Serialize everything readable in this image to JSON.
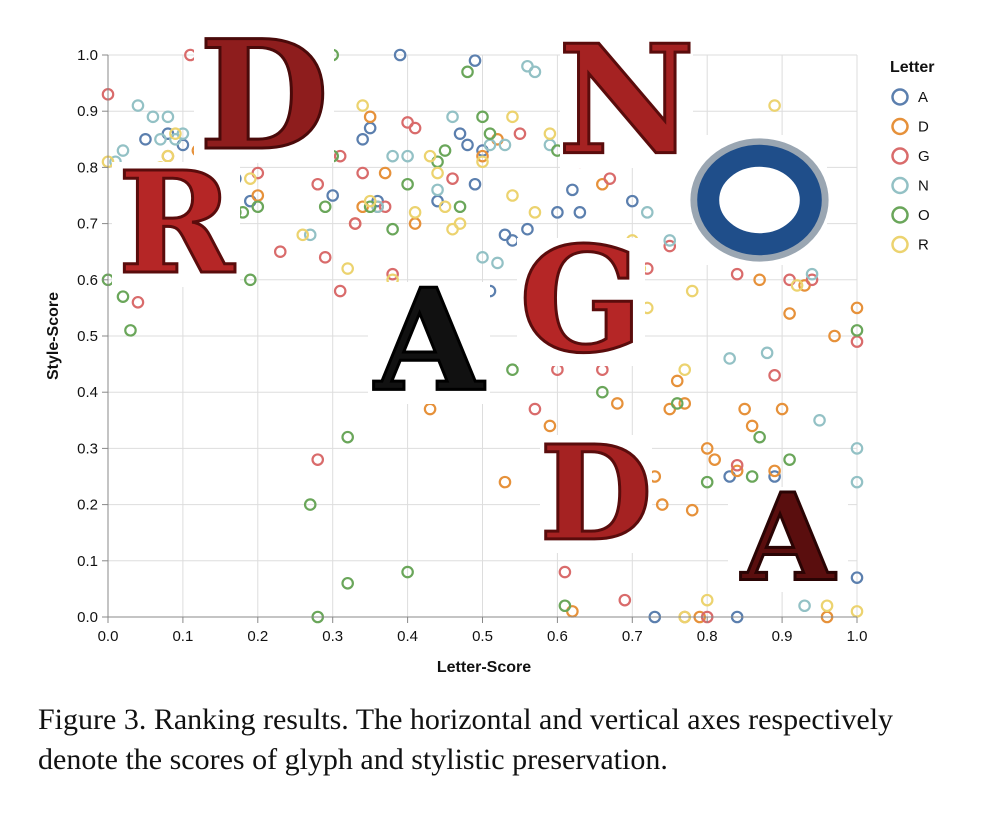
{
  "chart_data": {
    "type": "scatter",
    "xlabel": "Letter-Score",
    "ylabel": "Style-Score",
    "xlim": [
      0.0,
      1.0
    ],
    "ylim": [
      0.0,
      1.0
    ],
    "xticks": [
      "0.0",
      "0.1",
      "0.2",
      "0.3",
      "0.4",
      "0.5",
      "0.6",
      "0.7",
      "0.8",
      "0.9",
      "1.0"
    ],
    "yticks": [
      "0.0",
      "0.1",
      "0.2",
      "0.3",
      "0.4",
      "0.5",
      "0.6",
      "0.7",
      "0.8",
      "0.9",
      "1.0"
    ],
    "grid": true,
    "legend": {
      "title": "Letter",
      "position": "right"
    },
    "series": [
      {
        "name": "A",
        "color": "#5b7fae",
        "points": [
          [
            0.13,
            0.76
          ],
          [
            0.17,
            0.78
          ],
          [
            0.19,
            0.74
          ],
          [
            0.3,
            0.75
          ],
          [
            0.34,
            0.85
          ],
          [
            0.35,
            0.87
          ],
          [
            0.36,
            0.74
          ],
          [
            0.44,
            0.74
          ],
          [
            0.47,
            0.86
          ],
          [
            0.48,
            0.84
          ],
          [
            0.49,
            0.77
          ],
          [
            0.49,
            0.99
          ],
          [
            0.5,
            0.83
          ],
          [
            0.51,
            0.58
          ],
          [
            0.53,
            0.68
          ],
          [
            0.54,
            0.67
          ],
          [
            0.56,
            0.69
          ],
          [
            0.6,
            0.72
          ],
          [
            0.62,
            0.76
          ],
          [
            0.63,
            0.72
          ],
          [
            0.64,
            0.66
          ],
          [
            0.7,
            0.74
          ],
          [
            0.71,
            0.3
          ],
          [
            0.73,
            0.0
          ],
          [
            0.83,
            0.25
          ],
          [
            0.84,
            0.0
          ],
          [
            0.89,
            0.25
          ],
          [
            1.0,
            0.07
          ],
          [
            0.39,
            1.0
          ],
          [
            0.13,
            0.81
          ],
          [
            0.08,
            0.86
          ],
          [
            0.05,
            0.85
          ],
          [
            0.1,
            0.84
          ]
        ]
      },
      {
        "name": "D",
        "color": "#e6913a",
        "points": [
          [
            0.12,
            0.83
          ],
          [
            0.2,
            0.75
          ],
          [
            0.33,
            0.7
          ],
          [
            0.34,
            0.73
          ],
          [
            0.35,
            0.89
          ],
          [
            0.37,
            0.79
          ],
          [
            0.41,
            0.7
          ],
          [
            0.43,
            0.37
          ],
          [
            0.5,
            0.82
          ],
          [
            0.52,
            0.85
          ],
          [
            0.53,
            0.24
          ],
          [
            0.57,
            0.65
          ],
          [
            0.59,
            0.34
          ],
          [
            0.62,
            0.01
          ],
          [
            0.66,
            0.77
          ],
          [
            0.68,
            0.38
          ],
          [
            0.69,
            0.48
          ],
          [
            0.7,
            0.22
          ],
          [
            0.71,
            0.16
          ],
          [
            0.73,
            0.25
          ],
          [
            0.74,
            0.2
          ],
          [
            0.75,
            0.37
          ],
          [
            0.76,
            0.42
          ],
          [
            0.77,
            0.38
          ],
          [
            0.78,
            0.19
          ],
          [
            0.8,
            0.3
          ],
          [
            0.81,
            0.28
          ],
          [
            0.84,
            0.26
          ],
          [
            0.85,
            0.37
          ],
          [
            0.86,
            0.34
          ],
          [
            0.87,
            0.6
          ],
          [
            0.89,
            0.26
          ],
          [
            0.9,
            0.37
          ],
          [
            0.91,
            0.54
          ],
          [
            0.97,
            0.5
          ],
          [
            1.0,
            0.55
          ],
          [
            0.93,
            0.59
          ],
          [
            0.77,
            0.0
          ],
          [
            0.79,
            0.0
          ],
          [
            0.96,
            0.0
          ],
          [
            0.08,
            0.82
          ]
        ]
      },
      {
        "name": "G",
        "color": "#d96b6b",
        "points": [
          [
            0.0,
            0.93
          ],
          [
            0.04,
            0.56
          ],
          [
            0.11,
            1.0
          ],
          [
            0.2,
            0.79
          ],
          [
            0.23,
            0.65
          ],
          [
            0.28,
            0.77
          ],
          [
            0.29,
            0.64
          ],
          [
            0.31,
            0.58
          ],
          [
            0.33,
            0.7
          ],
          [
            0.34,
            0.79
          ],
          [
            0.36,
            0.73
          ],
          [
            0.37,
            0.73
          ],
          [
            0.38,
            0.61
          ],
          [
            0.41,
            0.87
          ],
          [
            0.46,
            0.78
          ],
          [
            0.55,
            0.86
          ],
          [
            0.57,
            0.37
          ],
          [
            0.6,
            0.44
          ],
          [
            0.61,
            0.08
          ],
          [
            0.63,
            0.81
          ],
          [
            0.66,
            0.44
          ],
          [
            0.67,
            0.78
          ],
          [
            0.69,
            0.03
          ],
          [
            0.72,
            0.62
          ],
          [
            0.75,
            0.66
          ],
          [
            0.8,
            0.0
          ],
          [
            0.84,
            0.61
          ],
          [
            0.84,
            0.27
          ],
          [
            0.89,
            0.43
          ],
          [
            0.91,
            0.6
          ],
          [
            0.94,
            0.6
          ],
          [
            1.0,
            0.49
          ],
          [
            0.28,
            0.28
          ],
          [
            0.31,
            0.82
          ],
          [
            0.4,
            0.88
          ],
          [
            0.06,
            0.73
          ]
        ]
      },
      {
        "name": "N",
        "color": "#93c1c5",
        "points": [
          [
            0.01,
            0.81
          ],
          [
            0.02,
            0.83
          ],
          [
            0.04,
            0.91
          ],
          [
            0.06,
            0.89
          ],
          [
            0.07,
            0.85
          ],
          [
            0.08,
            0.89
          ],
          [
            0.09,
            0.85
          ],
          [
            0.1,
            0.86
          ],
          [
            0.12,
            0.8
          ],
          [
            0.14,
            0.79
          ],
          [
            0.17,
            0.82
          ],
          [
            0.27,
            0.68
          ],
          [
            0.36,
            0.73
          ],
          [
            0.38,
            0.82
          ],
          [
            0.4,
            0.82
          ],
          [
            0.44,
            0.76
          ],
          [
            0.46,
            0.89
          ],
          [
            0.5,
            0.64
          ],
          [
            0.51,
            0.84
          ],
          [
            0.52,
            0.63
          ],
          [
            0.56,
            0.98
          ],
          [
            0.57,
            0.97
          ],
          [
            0.59,
            0.84
          ],
          [
            0.69,
            0.3
          ],
          [
            0.72,
            0.72
          ],
          [
            0.75,
            0.67
          ],
          [
            0.83,
            0.46
          ],
          [
            0.88,
            0.47
          ],
          [
            0.93,
            0.02
          ],
          [
            0.94,
            0.61
          ],
          [
            0.95,
            0.35
          ],
          [
            1.0,
            0.3
          ],
          [
            1.0,
            0.24
          ],
          [
            0.53,
            0.84
          ]
        ]
      },
      {
        "name": "O",
        "color": "#6aa65a",
        "points": [
          [
            0.0,
            0.6
          ],
          [
            0.02,
            0.57
          ],
          [
            0.03,
            0.51
          ],
          [
            0.17,
            0.72
          ],
          [
            0.18,
            0.72
          ],
          [
            0.19,
            0.6
          ],
          [
            0.2,
            0.73
          ],
          [
            0.29,
            0.73
          ],
          [
            0.3,
            0.82
          ],
          [
            0.3,
            1.0
          ],
          [
            0.32,
            0.32
          ],
          [
            0.32,
            0.06
          ],
          [
            0.35,
            0.73
          ],
          [
            0.38,
            0.69
          ],
          [
            0.4,
            0.77
          ],
          [
            0.4,
            0.08
          ],
          [
            0.44,
            0.81
          ],
          [
            0.47,
            0.73
          ],
          [
            0.48,
            0.97
          ],
          [
            0.5,
            0.89
          ],
          [
            0.51,
            0.86
          ],
          [
            0.54,
            0.44
          ],
          [
            0.6,
            0.83
          ],
          [
            0.61,
            0.02
          ],
          [
            0.66,
            0.4
          ],
          [
            0.76,
            0.38
          ],
          [
            0.8,
            0.24
          ],
          [
            0.86,
            0.25
          ],
          [
            0.87,
            0.32
          ],
          [
            0.91,
            0.28
          ],
          [
            1.0,
            0.51
          ],
          [
            0.28,
            0.0
          ],
          [
            0.27,
            0.2
          ],
          [
            0.45,
            0.83
          ]
        ]
      },
      {
        "name": "R",
        "color": "#ecd36f",
        "points": [
          [
            0.0,
            0.81
          ],
          [
            0.08,
            0.82
          ],
          [
            0.09,
            0.86
          ],
          [
            0.13,
            0.81
          ],
          [
            0.19,
            0.78
          ],
          [
            0.26,
            0.68
          ],
          [
            0.32,
            0.62
          ],
          [
            0.34,
            0.91
          ],
          [
            0.35,
            0.74
          ],
          [
            0.38,
            0.6
          ],
          [
            0.41,
            0.72
          ],
          [
            0.43,
            0.82
          ],
          [
            0.44,
            0.79
          ],
          [
            0.45,
            0.73
          ],
          [
            0.46,
            0.69
          ],
          [
            0.47,
            0.7
          ],
          [
            0.5,
            0.81
          ],
          [
            0.54,
            0.75
          ],
          [
            0.57,
            0.72
          ],
          [
            0.59,
            0.86
          ],
          [
            0.7,
            0.67
          ],
          [
            0.71,
            0.62
          ],
          [
            0.72,
            0.55
          ],
          [
            0.77,
            0.44
          ],
          [
            0.78,
            0.58
          ],
          [
            0.8,
            0.03
          ],
          [
            0.83,
            0.7
          ],
          [
            0.89,
            0.91
          ],
          [
            0.92,
            0.59
          ],
          [
            0.96,
            0.02
          ],
          [
            1.0,
            0.01
          ],
          [
            0.77,
            0.0
          ],
          [
            0.54,
            0.89
          ],
          [
            0.07,
            0.8
          ]
        ]
      }
    ]
  },
  "caption": "Figure 3. Ranking results.  The horizontal and vertical axes respectively denote the scores of glyph and stylistic preservation.",
  "overlays": [
    {
      "name": "dragon-letter-d-top",
      "letter": "D",
      "fill": "#8e1d1d",
      "stroke": "#4a0a0a"
    },
    {
      "name": "dragon-letter-n",
      "letter": "N",
      "fill": "#a52222",
      "stroke": "#5a0c0c"
    },
    {
      "name": "dragon-letter-r",
      "letter": "R",
      "fill": "#b52626",
      "stroke": "#5a0c0c"
    },
    {
      "name": "dragon-letter-o",
      "letter": "O",
      "fill": "#1f4e8a",
      "stroke": "#9aa6b2"
    },
    {
      "name": "dragon-letter-g",
      "letter": "G",
      "fill": "#b52626",
      "stroke": "#5a0c0c"
    },
    {
      "name": "dragon-letter-a-black",
      "letter": "A",
      "fill": "#111111",
      "stroke": "#000000"
    },
    {
      "name": "dragon-letter-d-bottom",
      "letter": "D",
      "fill": "#a52222",
      "stroke": "#5a0c0c"
    },
    {
      "name": "letter-a-dark",
      "letter": "A",
      "fill": "#5a0e0e",
      "stroke": "#2a0404"
    }
  ]
}
